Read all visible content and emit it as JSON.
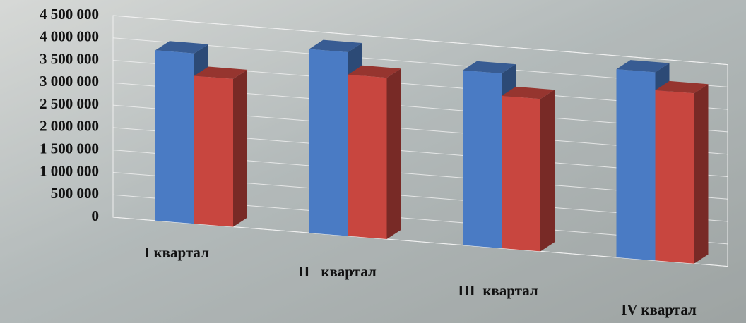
{
  "chart_data": {
    "type": "bar3d",
    "categories": [
      "I квартал",
      "II   квартал",
      "III  квартал",
      "IV квартал"
    ],
    "series": [
      {
        "color": "#4a7bc4",
        "values": [
          3800000,
          4100000,
          3900000,
          4200000
        ]
      },
      {
        "color": "#c8463f",
        "values": [
          3300000,
          3600000,
          3400000,
          3800000
        ]
      }
    ],
    "ylim": [
      0,
      4500000
    ],
    "yticks": [
      0,
      {
        "value": 500000,
        "label": "500 000"
      },
      {
        "value": 1000000,
        "label": "1 000 000"
      },
      {
        "value": 1500000,
        "label": "1 500 000"
      },
      {
        "value": 2000000,
        "label": "2 000 000"
      },
      {
        "value": 2500000,
        "label": "2 500 000"
      },
      {
        "value": 3000000,
        "label": "3 000 000"
      },
      {
        "value": 3500000,
        "label": "3 500 000"
      },
      {
        "value": 4000000,
        "label": "4 000 000"
      },
      {
        "value": 4500000,
        "label": "4 500 000"
      }
    ],
    "grid": true
  }
}
